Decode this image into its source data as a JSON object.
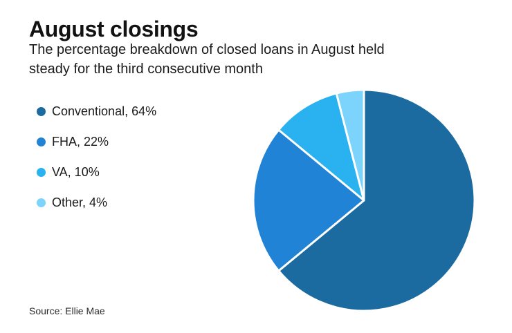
{
  "header": {
    "title": "August closings",
    "subtitle_lines": [
      "The percentage breakdown of closed loans in August held",
      "steady for the third consecutive month"
    ]
  },
  "legend": {
    "items": [
      {
        "label": "Conventional, 64%",
        "color": "#1c6ba0"
      },
      {
        "label": "FHA, 22%",
        "color": "#2183d5"
      },
      {
        "label": "VA, 10%",
        "color": "#29b1f0"
      },
      {
        "label": "Other, 4%",
        "color": "#7cd3fb"
      }
    ]
  },
  "footer": {
    "source": "Source: Ellie Mae"
  },
  "chart_data": {
    "type": "pie",
    "title": "August closings",
    "subtitle": "The percentage breakdown of closed loans in August held steady for the third consecutive month",
    "categories": [
      "Conventional",
      "FHA",
      "VA",
      "Other"
    ],
    "values": [
      64,
      22,
      10,
      4
    ],
    "unit": "%",
    "colors": [
      "#1c6ba0",
      "#2183d5",
      "#29b1f0",
      "#7cd3fb"
    ],
    "start_angle_deg": -90,
    "direction": "clockwise",
    "legend_position": "left",
    "slice_border_color": "#ffffff",
    "slice_border_width": 3,
    "source": "Ellie Mae"
  }
}
